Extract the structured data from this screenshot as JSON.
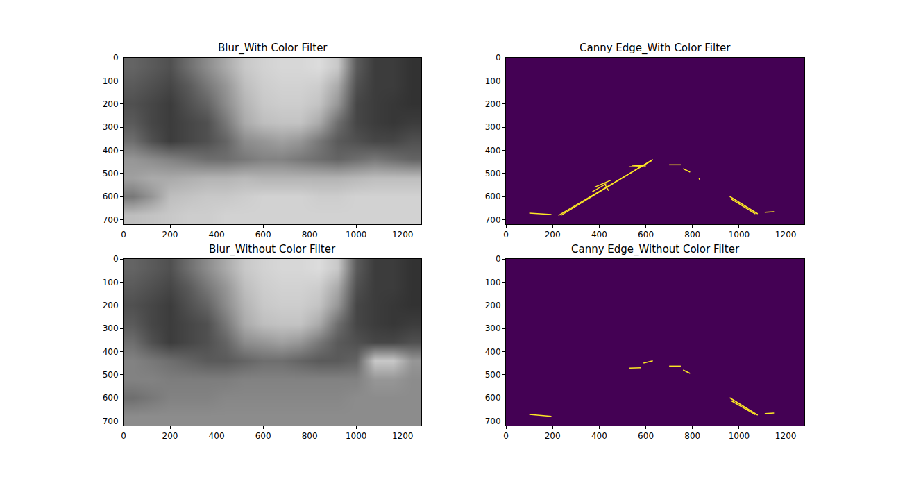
{
  "chart_data": [
    {
      "type": "image",
      "title": "Blur_With Color Filter",
      "xlim": [
        0,
        1280
      ],
      "ylim": [
        720,
        0
      ],
      "xticks": [
        0,
        200,
        400,
        600,
        800,
        1000,
        1200
      ],
      "yticks": [
        0,
        100,
        200,
        300,
        400,
        500,
        600,
        700
      ],
      "zlim": [
        0,
        255
      ],
      "cells": [
        [
          100,
          90,
          80,
          110,
          140,
          170,
          200,
          210,
          215,
          215,
          220,
          200,
          90,
          60,
          60,
          50
        ],
        [
          90,
          80,
          70,
          90,
          120,
          150,
          190,
          205,
          210,
          210,
          205,
          170,
          80,
          60,
          60,
          50
        ],
        [
          80,
          70,
          60,
          80,
          100,
          140,
          180,
          200,
          205,
          205,
          195,
          150,
          70,
          60,
          55,
          50
        ],
        [
          90,
          70,
          60,
          70,
          80,
          120,
          170,
          190,
          195,
          195,
          170,
          110,
          70,
          60,
          55,
          60
        ],
        [
          110,
          80,
          60,
          70,
          80,
          100,
          140,
          150,
          160,
          150,
          120,
          90,
          80,
          70,
          70,
          80
        ],
        [
          150,
          140,
          130,
          120,
          110,
          110,
          120,
          130,
          130,
          120,
          110,
          100,
          110,
          120,
          110,
          100
        ],
        [
          160,
          170,
          170,
          175,
          180,
          180,
          185,
          180,
          180,
          180,
          180,
          180,
          185,
          190,
          190,
          190
        ],
        [
          120,
          150,
          190,
          195,
          200,
          200,
          205,
          210,
          210,
          210,
          205,
          205,
          210,
          210,
          210,
          210
        ],
        [
          190,
          195,
          200,
          205,
          205,
          210,
          210,
          210,
          210,
          210,
          210,
          210,
          210,
          210,
          210,
          210
        ]
      ]
    },
    {
      "type": "edges",
      "title": "Canny Edge_With Color Filter",
      "xlim": [
        0,
        1280
      ],
      "ylim": [
        720,
        0
      ],
      "xticks": [
        0,
        200,
        400,
        600,
        800,
        1000,
        1200
      ],
      "yticks": [
        0,
        100,
        200,
        300,
        400,
        500,
        600,
        700
      ],
      "color": "#fde725",
      "segments": [
        [
          225,
          682,
          625,
          445
        ],
        [
          235,
          682,
          630,
          440
        ],
        [
          380,
          560,
          450,
          530
        ],
        [
          370,
          580,
          430,
          545
        ],
        [
          420,
          540,
          440,
          575
        ],
        [
          100,
          672,
          195,
          678
        ],
        [
          530,
          472,
          580,
          470
        ],
        [
          540,
          465,
          600,
          468
        ],
        [
          700,
          463,
          750,
          463
        ],
        [
          760,
          480,
          790,
          495
        ],
        [
          828,
          522,
          832,
          528
        ],
        [
          960,
          600,
          1080,
          675
        ],
        [
          965,
          610,
          1070,
          675
        ],
        [
          1110,
          668,
          1150,
          666
        ]
      ]
    },
    {
      "type": "image",
      "title": "Blur_Without Color Filter",
      "xlim": [
        0,
        1280
      ],
      "ylim": [
        720,
        0
      ],
      "xticks": [
        0,
        200,
        400,
        600,
        800,
        1000,
        1200
      ],
      "yticks": [
        0,
        100,
        200,
        300,
        400,
        500,
        600,
        700
      ],
      "zlim": [
        0,
        255
      ],
      "cells": [
        [
          100,
          90,
          80,
          110,
          140,
          170,
          200,
          210,
          215,
          215,
          220,
          200,
          90,
          60,
          60,
          50
        ],
        [
          90,
          80,
          70,
          90,
          120,
          150,
          190,
          205,
          210,
          210,
          205,
          170,
          80,
          60,
          60,
          50
        ],
        [
          80,
          70,
          60,
          80,
          100,
          140,
          180,
          200,
          205,
          205,
          195,
          150,
          70,
          60,
          55,
          50
        ],
        [
          90,
          70,
          60,
          70,
          80,
          120,
          170,
          190,
          195,
          195,
          170,
          110,
          70,
          60,
          55,
          60
        ],
        [
          110,
          80,
          60,
          70,
          80,
          100,
          140,
          150,
          160,
          150,
          120,
          90,
          80,
          70,
          70,
          80
        ],
        [
          130,
          120,
          110,
          100,
          90,
          90,
          100,
          110,
          110,
          100,
          90,
          90,
          100,
          200,
          200,
          150
        ],
        [
          130,
          130,
          125,
          125,
          125,
          125,
          130,
          130,
          130,
          130,
          130,
          130,
          130,
          150,
          150,
          140
        ],
        [
          110,
          120,
          130,
          130,
          130,
          135,
          135,
          135,
          135,
          135,
          135,
          135,
          140,
          140,
          140,
          140
        ],
        [
          140,
          140,
          140,
          140,
          140,
          140,
          140,
          140,
          140,
          140,
          140,
          140,
          140,
          140,
          140,
          140
        ]
      ]
    },
    {
      "type": "edges",
      "title": "Canny Edge_Without Color Filter",
      "xlim": [
        0,
        1280
      ],
      "ylim": [
        720,
        0
      ],
      "xticks": [
        0,
        200,
        400,
        600,
        800,
        1000,
        1200
      ],
      "yticks": [
        0,
        100,
        200,
        300,
        400,
        500,
        600,
        700
      ],
      "color": "#fde725",
      "segments": [
        [
          100,
          672,
          195,
          680
        ],
        [
          530,
          472,
          580,
          470
        ],
        [
          590,
          450,
          630,
          440
        ],
        [
          700,
          463,
          750,
          463
        ],
        [
          760,
          480,
          790,
          495
        ],
        [
          960,
          600,
          1080,
          675
        ],
        [
          965,
          612,
          1070,
          673
        ],
        [
          1110,
          668,
          1150,
          666
        ]
      ]
    }
  ]
}
